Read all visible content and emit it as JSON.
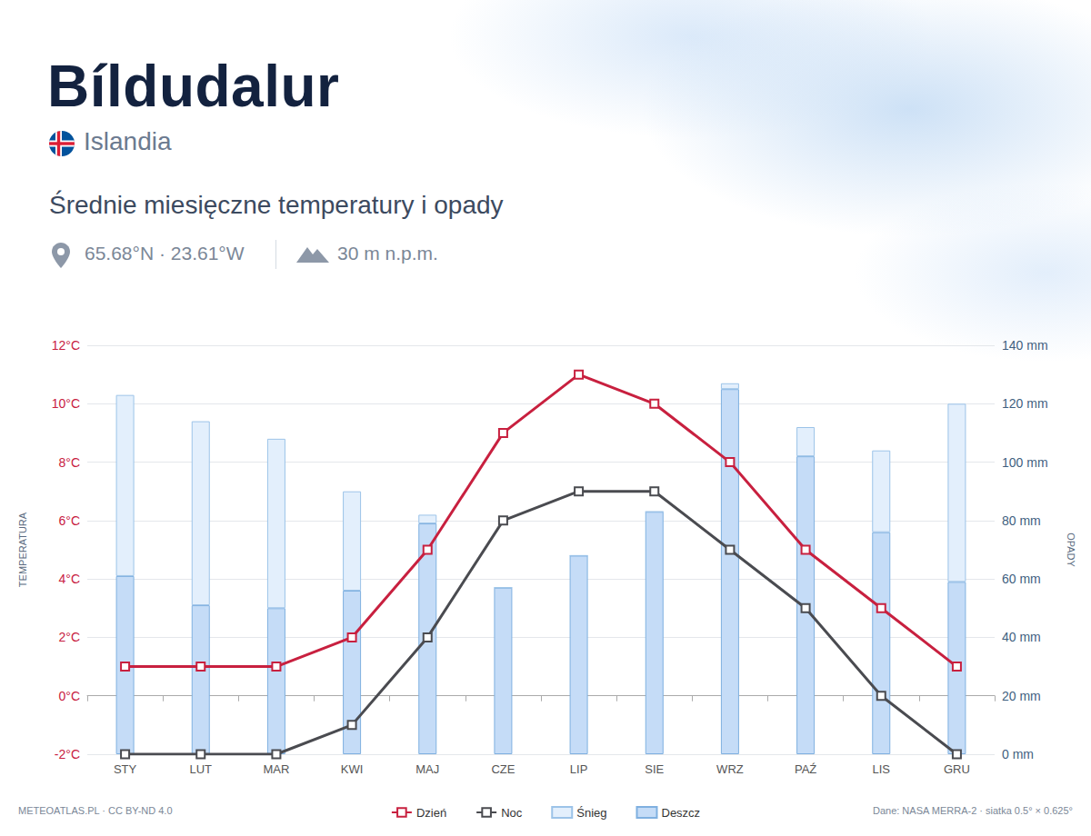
{
  "chart_data": {
    "type": "bar",
    "title": "Bíldudalur",
    "country": "Islandia",
    "subtitle": "Średnie miesięczne temperatury i opady",
    "location": "65.68°N · 23.61°W",
    "elevation": "30 m n.p.m.",
    "credit": "METEOATLAS.PL · CC BY-ND 4.0",
    "source": "Dane: NASA MERRA-2 · siatka 0.5° × 0.625°",
    "ylabel": "TEMPERATURA",
    "y2label": "OPADY",
    "categories": [
      "STY",
      "LUT",
      "MAR",
      "KWI",
      "MAJ",
      "CZE",
      "LIP",
      "SIE",
      "WRZ",
      "PAŹ",
      "LIS",
      "GRU"
    ],
    "series": [
      {
        "name": "Dzień",
        "type": "line",
        "color": "#c8203f",
        "marker": "square",
        "line_style": "solid",
        "values": [
          1,
          1,
          1,
          2,
          5,
          9,
          11,
          10,
          8,
          5,
          3,
          1
        ]
      },
      {
        "name": "Noc",
        "type": "line",
        "color": "#4a4b50",
        "marker": "square",
        "line_style": "solid",
        "values": [
          -2,
          -2,
          -2,
          -1,
          2,
          6,
          7,
          7,
          5,
          3,
          0,
          -2
        ]
      },
      {
        "name": "Śnieg",
        "type": "bar",
        "axis": "y2",
        "color": "#e3effc",
        "values": [
          62,
          63,
          58,
          34,
          3,
          0,
          0,
          0,
          2,
          10,
          28,
          61
        ]
      },
      {
        "name": "Deszcz",
        "type": "bar",
        "axis": "y2",
        "color": "#c5dcf7",
        "values": [
          61,
          51,
          50,
          56,
          79,
          57,
          68,
          83,
          125,
          102,
          76,
          59
        ]
      }
    ],
    "stacked": true,
    "ylim": [
      -2,
      12
    ],
    "yticks": [
      {
        "value": -2,
        "label": "-2°C"
      },
      {
        "value": 0,
        "label": "0°C"
      },
      {
        "value": 2,
        "label": "2°C"
      },
      {
        "value": 4,
        "label": "4°C"
      },
      {
        "value": 6,
        "label": "6°C"
      },
      {
        "value": 8,
        "label": "8°C"
      },
      {
        "value": 10,
        "label": "10°C"
      },
      {
        "value": 12,
        "label": "12°C"
      }
    ],
    "y2lim": [
      0,
      140
    ],
    "y2ticks": [
      {
        "value": 0,
        "label": "0 mm"
      },
      {
        "value": 20,
        "label": "20 mm"
      },
      {
        "value": 40,
        "label": "40 mm"
      },
      {
        "value": 60,
        "label": "60 mm"
      },
      {
        "value": 80,
        "label": "80 mm"
      },
      {
        "value": 100,
        "label": "100 mm"
      },
      {
        "value": 120,
        "label": "120 mm"
      },
      {
        "value": 140,
        "label": "140 mm"
      }
    ],
    "grid": true,
    "legend": "bottom"
  }
}
